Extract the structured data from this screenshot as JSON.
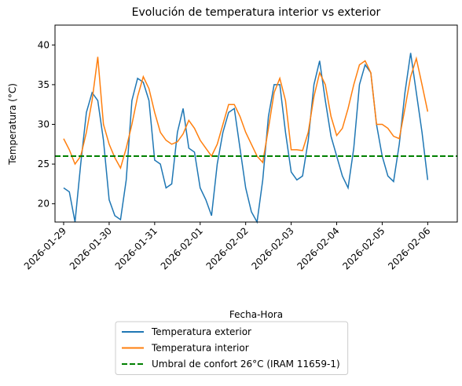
{
  "chart_data": {
    "type": "line",
    "title": "Evolución de temperatura interior vs exterior",
    "xlabel": "Fecha-Hora",
    "ylabel": "Temperatura (°C)",
    "x": [
      0,
      0.125,
      0.25,
      0.375,
      0.5,
      0.625,
      0.75,
      0.875,
      1,
      1.125,
      1.25,
      1.375,
      1.5,
      1.625,
      1.75,
      1.875,
      2,
      2.125,
      2.25,
      2.375,
      2.5,
      2.625,
      2.75,
      2.875,
      3,
      3.125,
      3.25,
      3.375,
      3.5,
      3.625,
      3.75,
      3.875,
      4,
      4.125,
      4.25,
      4.375,
      4.5,
      4.625,
      4.75,
      4.875,
      5,
      5.125,
      5.25,
      5.375,
      5.5,
      5.625,
      5.75,
      5.875,
      6,
      6.125,
      6.25,
      6.375,
      6.5,
      6.625,
      6.75,
      6.875,
      7,
      7.125,
      7.25,
      7.375,
      7.5,
      7.625,
      7.75,
      7.875,
      8
    ],
    "series": [
      {
        "name": "Temperatura exterior",
        "color": "#1f77b4",
        "values": [
          22,
          21.5,
          17.7,
          25,
          31.5,
          34,
          33,
          28,
          20.5,
          18.5,
          18,
          23,
          33,
          35.8,
          35.3,
          33,
          25.5,
          25,
          22,
          22.5,
          29,
          32,
          27,
          26.5,
          22,
          20.5,
          18.5,
          25,
          29,
          31.5,
          32,
          27,
          22,
          19,
          17.7,
          23,
          31,
          35,
          35,
          29,
          24,
          23,
          23.5,
          28,
          35,
          38,
          33,
          28.5,
          26,
          23.5,
          22,
          27,
          35,
          37.5,
          36.5,
          30,
          26,
          23.5,
          22.8,
          27.5,
          34,
          39,
          34,
          29,
          23
        ]
      },
      {
        "name": "Temperatura interior",
        "color": "#ff7f0e",
        "values": [
          28.2,
          26.8,
          25,
          26,
          29,
          33,
          38.5,
          30,
          27.5,
          25.8,
          24.5,
          27,
          30,
          33.5,
          36,
          34.5,
          31.5,
          29,
          28,
          27.5,
          27.8,
          28.8,
          30.5,
          29.5,
          28,
          27,
          26,
          27.5,
          30,
          32.5,
          32.5,
          31,
          29,
          27.5,
          26,
          25.2,
          29.5,
          34,
          35.8,
          33,
          26.8,
          26.8,
          26.7,
          29,
          33.5,
          36.5,
          35,
          31,
          28.6,
          29.5,
          32,
          35,
          37.5,
          38,
          36.5,
          30,
          30,
          29.5,
          28.5,
          28.2,
          32,
          36,
          38.3,
          35,
          31.6
        ]
      }
    ],
    "hlines": [
      {
        "value": 26,
        "name": "Umbral de confort 26°C (IRAM 11659-1)",
        "color": "#008000",
        "style": "dashed"
      }
    ],
    "xlim": [
      -0.19,
      8.65
    ],
    "ylim": [
      17.7,
      42.5
    ],
    "xticks": [
      {
        "value": 0,
        "label": "2026-01-29"
      },
      {
        "value": 1,
        "label": "2026-01-30"
      },
      {
        "value": 2,
        "label": "2026-01-31"
      },
      {
        "value": 3,
        "label": "2026-02-01"
      },
      {
        "value": 4,
        "label": "2026-02-02"
      },
      {
        "value": 5,
        "label": "2026-02-03"
      },
      {
        "value": 6,
        "label": "2026-02-04"
      },
      {
        "value": 7,
        "label": "2026-02-05"
      },
      {
        "value": 8,
        "label": "2026-02-06"
      }
    ],
    "yticks": [
      20,
      25,
      30,
      35,
      40
    ],
    "grid": false,
    "legend": "below"
  }
}
